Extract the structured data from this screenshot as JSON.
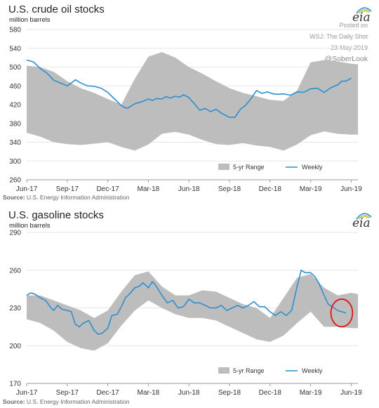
{
  "watermark": {
    "posted_on": "Posted on",
    "outlet": "WSJ: The Daily Shot",
    "date": "23-May-2019",
    "handle": "@SoberLook"
  },
  "logo": {
    "text": "eia"
  },
  "colors": {
    "range_fill": "#bdbdbd",
    "weekly_line": "#2c8fd0",
    "highlight_circle": "#e0141b",
    "axis": "#9a9a9a"
  },
  "chart_data": [
    {
      "type": "area",
      "title": "U.S. crude oil stocks",
      "unit": "million barrels",
      "source_label": "Source:",
      "source_text": "U.S. Energy Information Administration",
      "ylim": [
        260,
        580
      ],
      "yticks": [
        260,
        300,
        340,
        380,
        420,
        460,
        500,
        540,
        580
      ],
      "xlim": [
        0,
        24.5
      ],
      "xticks": [
        {
          "label": "Jun-17",
          "x": 0
        },
        {
          "label": "Sep-17",
          "x": 3
        },
        {
          "label": "Dec-17",
          "x": 6
        },
        {
          "label": "Mar-18",
          "x": 9
        },
        {
          "label": "Jun-18",
          "x": 12
        },
        {
          "label": "Sep-18",
          "x": 15
        },
        {
          "label": "Dec-18",
          "x": 18
        },
        {
          "label": "Mar-19",
          "x": 21
        },
        {
          "label": "Jun-19",
          "x": 24
        }
      ],
      "grid": true,
      "legend_position": "bottom-right",
      "series": [
        {
          "name": "5-yr Range",
          "type": "band",
          "x": [
            0,
            1,
            2,
            3,
            4,
            5,
            6,
            7,
            8,
            9,
            10,
            11,
            12,
            13,
            14,
            15,
            16,
            17,
            18,
            19,
            20,
            21,
            22,
            23,
            24,
            24.5
          ],
          "upper": [
            503,
            500,
            490,
            470,
            455,
            445,
            432,
            420,
            475,
            522,
            532,
            520,
            500,
            486,
            470,
            455,
            445,
            438,
            430,
            428,
            450,
            510,
            515,
            512,
            507,
            506
          ],
          "lower": [
            360,
            352,
            340,
            336,
            334,
            337,
            340,
            330,
            322,
            335,
            358,
            362,
            356,
            345,
            336,
            334,
            338,
            333,
            330,
            322,
            335,
            355,
            363,
            358,
            356,
            356
          ]
        },
        {
          "name": "Weekly",
          "type": "line",
          "x": [
            0,
            0.5,
            1,
            1.5,
            2,
            2.5,
            3,
            3.3,
            3.6,
            4,
            4.5,
            5,
            5.5,
            6,
            6.5,
            7,
            7.3,
            7.5,
            8,
            8.5,
            9,
            9.3,
            9.6,
            10,
            10.3,
            10.6,
            11,
            11.3,
            11.6,
            12,
            12.4,
            12.8,
            13.2,
            13.6,
            14,
            14.4,
            14.8,
            15,
            15.4,
            15.8,
            16.2,
            16.6,
            17,
            17.4,
            17.8,
            18.2,
            18.6,
            19,
            19.5,
            20,
            20.5,
            21,
            21.5,
            22,
            22.5,
            23,
            23.3,
            23.6,
            24
          ],
          "y": [
            515,
            511,
            497,
            487,
            472,
            466,
            460,
            466,
            473,
            466,
            460,
            459,
            455,
            446,
            432,
            418,
            413,
            413,
            422,
            426,
            432,
            429,
            433,
            432,
            437,
            434,
            438,
            436,
            441,
            435,
            422,
            408,
            412,
            405,
            410,
            402,
            396,
            393,
            393,
            410,
            419,
            433,
            450,
            444,
            447,
            443,
            442,
            443,
            440,
            447,
            446,
            454,
            455,
            446,
            456,
            462,
            470,
            470,
            476
          ]
        }
      ]
    },
    {
      "type": "area",
      "title": "U.S. gasoline stocks",
      "unit": "million barrels",
      "source_label": "Source:",
      "source_text": "U.S. Energy Information Administration",
      "ylim": [
        170,
        290
      ],
      "yticks": [
        170,
        200,
        230,
        260,
        290
      ],
      "xlim": [
        0,
        24.5
      ],
      "xticks": [
        {
          "label": "Jun-17",
          "x": 0
        },
        {
          "label": "Sep-17",
          "x": 3
        },
        {
          "label": "Dec-17",
          "x": 6
        },
        {
          "label": "Mar-18",
          "x": 9
        },
        {
          "label": "Jun-18",
          "x": 12
        },
        {
          "label": "Sep-18",
          "x": 15
        },
        {
          "label": "Dec-18",
          "x": 18
        },
        {
          "label": "Mar-19",
          "x": 21
        },
        {
          "label": "Jun-19",
          "x": 24
        }
      ],
      "grid": true,
      "legend_position": "bottom-right",
      "highlight": {
        "x": 23.3,
        "y": 226,
        "rx": 0.8,
        "ry": 11
      },
      "series": [
        {
          "name": "5-yr Range",
          "type": "band",
          "x": [
            0,
            1,
            2,
            3,
            4,
            5,
            6,
            7,
            8,
            9,
            10,
            11,
            12,
            13,
            14,
            15,
            16,
            17,
            18,
            19,
            20,
            21,
            22,
            23,
            24,
            24.5
          ],
          "upper": [
            240,
            240,
            236,
            232,
            228,
            222,
            228,
            243,
            256,
            259,
            247,
            240,
            240,
            244,
            243,
            238,
            233,
            230,
            222,
            238,
            254,
            257,
            246,
            240,
            242,
            241
          ],
          "lower": [
            221,
            218,
            212,
            203,
            198,
            196,
            202,
            216,
            228,
            236,
            230,
            225,
            222,
            222,
            220,
            215,
            210,
            205,
            203,
            208,
            218,
            227,
            215,
            215,
            214,
            214
          ]
        },
        {
          "name": "Weekly",
          "type": "line",
          "x": [
            0,
            0.3,
            0.6,
            1,
            1.4,
            1.8,
            2,
            2.3,
            2.6,
            3,
            3.3,
            3.6,
            3.9,
            4.2,
            4.6,
            5,
            5.3,
            5.6,
            6,
            6.3,
            6.7,
            7,
            7.3,
            7.6,
            8,
            8.3,
            8.6,
            9,
            9.3,
            9.6,
            10,
            10.4,
            10.8,
            11.2,
            11.6,
            12,
            12.4,
            12.8,
            13.2,
            13.6,
            14,
            14.4,
            14.8,
            15.2,
            15.6,
            16,
            16.4,
            16.8,
            17.2,
            17.6,
            18,
            18.4,
            18.8,
            19.2,
            19.6,
            20,
            20.3,
            20.6,
            21,
            21.3,
            21.6,
            22,
            22.3,
            22.6,
            23,
            23.3,
            23.6
          ],
          "y": [
            240,
            242,
            241,
            238,
            236,
            230,
            228,
            232,
            229,
            228,
            227,
            217,
            215,
            218,
            220,
            212,
            209,
            210,
            214,
            224,
            225,
            231,
            238,
            241,
            246,
            247,
            250,
            246,
            251,
            247,
            240,
            234,
            236,
            230,
            231,
            237,
            234,
            234,
            232,
            230,
            230,
            232,
            228,
            230,
            232,
            230,
            232,
            235,
            231,
            231,
            227,
            224,
            227,
            224,
            228,
            247,
            260,
            258,
            258,
            255,
            250,
            240,
            233,
            231,
            228,
            227,
            226
          ]
        }
      ]
    }
  ]
}
